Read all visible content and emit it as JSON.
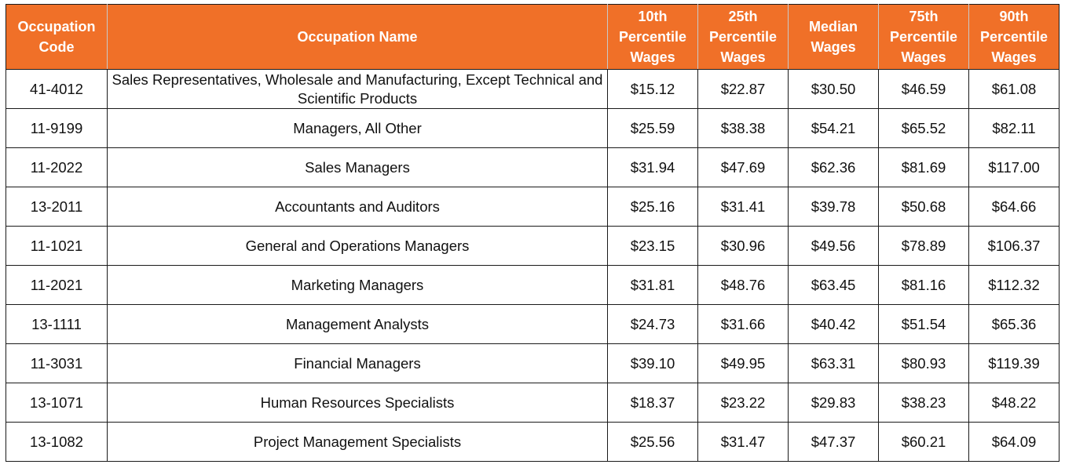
{
  "table": {
    "header": {
      "code": [
        "Occupation",
        "Code"
      ],
      "name": [
        "Occupation Name"
      ],
      "p10": [
        "10th",
        "Percentile",
        "Wages"
      ],
      "p25": [
        "25th",
        "Percentile",
        "Wages"
      ],
      "median": [
        "Median",
        "Wages"
      ],
      "p75": [
        "75th",
        "Percentile",
        "Wages"
      ],
      "p90": [
        "90th",
        "Percentile",
        "Wages"
      ]
    },
    "rows": [
      {
        "code": "41-4012",
        "name": "Sales Representatives, Wholesale and Manufacturing, Except Technical and Scientific Products",
        "p10": "$15.12",
        "p25": "$22.87",
        "median": "$30.50",
        "p75": "$46.59",
        "p90": "$61.08"
      },
      {
        "code": "11-9199",
        "name": "Managers, All Other",
        "p10": "$25.59",
        "p25": "$38.38",
        "median": "$54.21",
        "p75": "$65.52",
        "p90": "$82.11"
      },
      {
        "code": "11-2022",
        "name": "Sales Managers",
        "p10": "$31.94",
        "p25": "$47.69",
        "median": "$62.36",
        "p75": "$81.69",
        "p90": "$117.00"
      },
      {
        "code": "13-2011",
        "name": "Accountants and Auditors",
        "p10": "$25.16",
        "p25": "$31.41",
        "median": "$39.78",
        "p75": "$50.68",
        "p90": "$64.66"
      },
      {
        "code": "11-1021",
        "name": "General and Operations Managers",
        "p10": "$23.15",
        "p25": "$30.96",
        "median": "$49.56",
        "p75": "$78.89",
        "p90": "$106.37"
      },
      {
        "code": "11-2021",
        "name": "Marketing Managers",
        "p10": "$31.81",
        "p25": "$48.76",
        "median": "$63.45",
        "p75": "$81.16",
        "p90": "$112.32"
      },
      {
        "code": "13-1111",
        "name": "Management Analysts",
        "p10": "$24.73",
        "p25": "$31.66",
        "median": "$40.42",
        "p75": "$51.54",
        "p90": "$65.36"
      },
      {
        "code": "11-3031",
        "name": "Financial Managers",
        "p10": "$39.10",
        "p25": "$49.95",
        "median": "$63.31",
        "p75": "$80.93",
        "p90": "$119.39"
      },
      {
        "code": "13-1071",
        "name": "Human Resources Specialists",
        "p10": "$18.37",
        "p25": "$23.22",
        "median": "$29.83",
        "p75": "$38.23",
        "p90": "$48.22"
      },
      {
        "code": "13-1082",
        "name": "Project Management Specialists",
        "p10": "$25.56",
        "p25": "$31.47",
        "median": "$47.37",
        "p75": "$60.21",
        "p90": "$64.09"
      }
    ]
  },
  "colors": {
    "header_background": "#f07028",
    "header_text": "#ffffff",
    "grid_lines": "#1a1a1a"
  }
}
